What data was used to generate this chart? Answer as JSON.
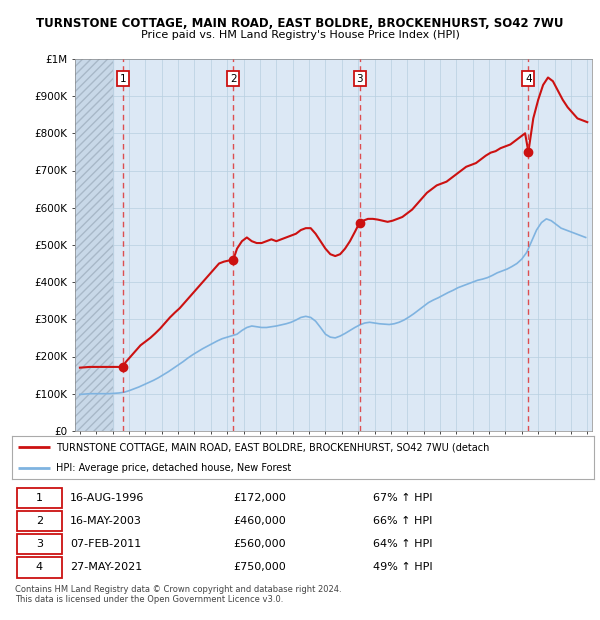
{
  "title": "TURNSTONE COTTAGE, MAIN ROAD, EAST BOLDRE, BROCKENHURST, SO42 7WU",
  "subtitle": "Price paid vs. HM Land Registry's House Price Index (HPI)",
  "ylim": [
    0,
    1000000
  ],
  "yticks": [
    0,
    100000,
    200000,
    300000,
    400000,
    500000,
    600000,
    700000,
    800000,
    900000,
    1000000
  ],
  "ytick_labels": [
    "£0",
    "£100K",
    "£200K",
    "£300K",
    "£400K",
    "£500K",
    "£600K",
    "£700K",
    "£800K",
    "£900K",
    "£1M"
  ],
  "xlim_start": 1993.7,
  "xlim_end": 2025.3,
  "sales": [
    {
      "num": 1,
      "year": 1996.617,
      "price": 172000,
      "label": "16-AUG-1996",
      "pct": "67%"
    },
    {
      "num": 2,
      "year": 2003.37,
      "price": 460000,
      "label": "16-MAY-2003",
      "pct": "66%"
    },
    {
      "num": 3,
      "year": 2011.092,
      "price": 560000,
      "label": "07-FEB-2011",
      "pct": "64%"
    },
    {
      "num": 4,
      "year": 2021.4,
      "price": 750000,
      "label": "27-MAY-2021",
      "pct": "49%"
    }
  ],
  "hpi_line_color": "#7fb3e0",
  "property_line_color": "#cc1111",
  "sale_marker_color": "#cc1111",
  "dashed_line_color": "#dd3333",
  "plot_bg_color": "#dce8f5",
  "grid_color": "#b8cfe0",
  "hatch_region_end": 1996.0,
  "legend_label_property": "TURNSTONE COTTAGE, MAIN ROAD, EAST BOLDRE, BROCKENHURST, SO42 7WU (detach",
  "legend_label_hpi": "HPI: Average price, detached house, New Forest",
  "footer": "Contains HM Land Registry data © Crown copyright and database right 2024.\nThis data is licensed under the Open Government Licence v3.0.",
  "property_hpi_x": [
    1994.0,
    1994.3,
    1994.6,
    1994.9,
    1995.2,
    1995.5,
    1995.8,
    1996.1,
    1996.4,
    1996.617,
    1996.8,
    1997.1,
    1997.4,
    1997.7,
    1998.0,
    1998.3,
    1998.6,
    1998.9,
    1999.2,
    1999.5,
    1999.8,
    2000.1,
    2000.4,
    2000.7,
    2001.0,
    2001.3,
    2001.6,
    2001.9,
    2002.2,
    2002.5,
    2002.8,
    2003.1,
    2003.37,
    2003.6,
    2003.9,
    2004.2,
    2004.5,
    2004.8,
    2005.1,
    2005.4,
    2005.7,
    2006.0,
    2006.3,
    2006.6,
    2006.9,
    2007.2,
    2007.5,
    2007.8,
    2008.1,
    2008.4,
    2008.7,
    2009.0,
    2009.3,
    2009.6,
    2009.9,
    2010.2,
    2010.5,
    2010.8,
    2011.092,
    2011.3,
    2011.6,
    2011.9,
    2012.2,
    2012.5,
    2012.8,
    2013.1,
    2013.4,
    2013.7,
    2014.0,
    2014.3,
    2014.6,
    2014.9,
    2015.2,
    2015.5,
    2015.8,
    2016.1,
    2016.4,
    2016.7,
    2017.0,
    2017.3,
    2017.6,
    2017.9,
    2018.2,
    2018.5,
    2018.8,
    2019.1,
    2019.4,
    2019.7,
    2020.0,
    2020.3,
    2020.6,
    2020.9,
    2021.2,
    2021.4,
    2021.7,
    2022.0,
    2022.3,
    2022.6,
    2022.9,
    2023.2,
    2023.5,
    2023.8,
    2024.1,
    2024.4,
    2024.7,
    2025.0
  ],
  "property_hpi_y": [
    170000,
    171000,
    172000,
    172000,
    172000,
    172000,
    172000,
    172000,
    172000,
    172000,
    185000,
    200000,
    215000,
    230000,
    240000,
    250000,
    262000,
    275000,
    290000,
    305000,
    318000,
    330000,
    345000,
    360000,
    375000,
    390000,
    405000,
    420000,
    435000,
    450000,
    455000,
    458000,
    460000,
    490000,
    510000,
    520000,
    510000,
    505000,
    505000,
    510000,
    515000,
    510000,
    515000,
    520000,
    525000,
    530000,
    540000,
    545000,
    545000,
    530000,
    510000,
    490000,
    475000,
    470000,
    475000,
    490000,
    510000,
    535000,
    560000,
    565000,
    570000,
    570000,
    568000,
    565000,
    562000,
    565000,
    570000,
    575000,
    585000,
    595000,
    610000,
    625000,
    640000,
    650000,
    660000,
    665000,
    670000,
    680000,
    690000,
    700000,
    710000,
    715000,
    720000,
    730000,
    740000,
    748000,
    752000,
    760000,
    765000,
    770000,
    780000,
    790000,
    800000,
    750000,
    840000,
    890000,
    930000,
    950000,
    940000,
    915000,
    890000,
    870000,
    855000,
    840000,
    835000,
    830000
  ],
  "hpi_avg_x": [
    1994.0,
    1994.3,
    1994.6,
    1994.9,
    1995.2,
    1995.5,
    1995.8,
    1996.1,
    1996.4,
    1996.7,
    1997.0,
    1997.3,
    1997.6,
    1997.9,
    1998.2,
    1998.5,
    1998.8,
    1999.1,
    1999.4,
    1999.7,
    2000.0,
    2000.3,
    2000.6,
    2000.9,
    2001.2,
    2001.5,
    2001.8,
    2002.1,
    2002.4,
    2002.7,
    2003.0,
    2003.3,
    2003.6,
    2003.9,
    2004.2,
    2004.5,
    2004.8,
    2005.1,
    2005.4,
    2005.7,
    2006.0,
    2006.3,
    2006.6,
    2006.9,
    2007.2,
    2007.5,
    2007.8,
    2008.1,
    2008.4,
    2008.7,
    2009.0,
    2009.3,
    2009.6,
    2009.9,
    2010.2,
    2010.5,
    2010.8,
    2011.1,
    2011.4,
    2011.7,
    2012.0,
    2012.3,
    2012.6,
    2012.9,
    2013.2,
    2013.5,
    2013.8,
    2014.1,
    2014.4,
    2014.7,
    2015.0,
    2015.3,
    2015.6,
    2015.9,
    2016.2,
    2016.5,
    2016.8,
    2017.1,
    2017.4,
    2017.7,
    2018.0,
    2018.3,
    2018.6,
    2018.9,
    2019.2,
    2019.5,
    2019.8,
    2020.1,
    2020.4,
    2020.7,
    2021.0,
    2021.3,
    2021.6,
    2021.9,
    2022.2,
    2022.5,
    2022.8,
    2023.1,
    2023.4,
    2023.7,
    2024.0,
    2024.3,
    2024.6,
    2024.9
  ],
  "hpi_avg_y": [
    98000,
    99000,
    100000,
    100000,
    100000,
    100000,
    100000,
    101000,
    102000,
    104000,
    108000,
    113000,
    118000,
    124000,
    130000,
    136000,
    143000,
    151000,
    159000,
    168000,
    177000,
    186000,
    196000,
    205000,
    213000,
    221000,
    228000,
    235000,
    242000,
    248000,
    252000,
    256000,
    260000,
    270000,
    278000,
    282000,
    280000,
    278000,
    278000,
    280000,
    282000,
    285000,
    288000,
    292000,
    298000,
    305000,
    308000,
    305000,
    295000,
    278000,
    260000,
    252000,
    250000,
    255000,
    262000,
    270000,
    278000,
    285000,
    290000,
    292000,
    290000,
    288000,
    287000,
    286000,
    288000,
    292000,
    298000,
    306000,
    315000,
    325000,
    335000,
    345000,
    352000,
    358000,
    365000,
    372000,
    378000,
    385000,
    390000,
    395000,
    400000,
    405000,
    408000,
    412000,
    418000,
    425000,
    430000,
    435000,
    442000,
    450000,
    462000,
    480000,
    510000,
    540000,
    560000,
    570000,
    565000,
    555000,
    545000,
    540000,
    535000,
    530000,
    525000,
    520000
  ]
}
